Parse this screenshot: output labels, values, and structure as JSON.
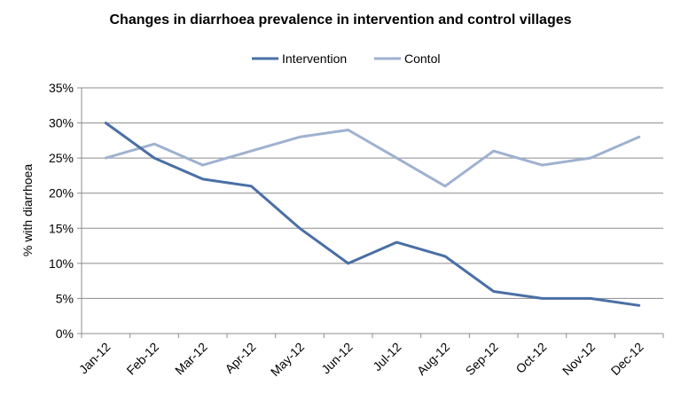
{
  "chart_data": {
    "type": "line",
    "title": "Changes in diarrhoea prevalence in intervention and control villages",
    "xlabel": "",
    "ylabel": "% with diarrhoea",
    "categories": [
      "Jan-12",
      "Feb-12",
      "Mar-12",
      "Apr-12",
      "May-12",
      "Jun-12",
      "Jul-12",
      "Aug-12",
      "Sep-12",
      "Oct-12",
      "Nov-12",
      "Dec-12"
    ],
    "ylim": [
      0,
      35
    ],
    "yticks": [
      0,
      5,
      10,
      15,
      20,
      25,
      30,
      35
    ],
    "ytick_labels": [
      "0%",
      "5%",
      "10%",
      "15%",
      "20%",
      "25%",
      "30%",
      "35%"
    ],
    "grid": true,
    "legend_position": "top",
    "series": [
      {
        "name": "Intervention",
        "color": "#4a6fa5",
        "values": [
          30,
          25,
          22,
          21,
          15,
          10,
          13,
          11,
          6,
          5,
          5,
          4
        ]
      },
      {
        "name": "Contol",
        "color": "#9fb1d0",
        "values": [
          25,
          27,
          24,
          26,
          28,
          29,
          25,
          21,
          26,
          24,
          25,
          28
        ]
      }
    ]
  }
}
